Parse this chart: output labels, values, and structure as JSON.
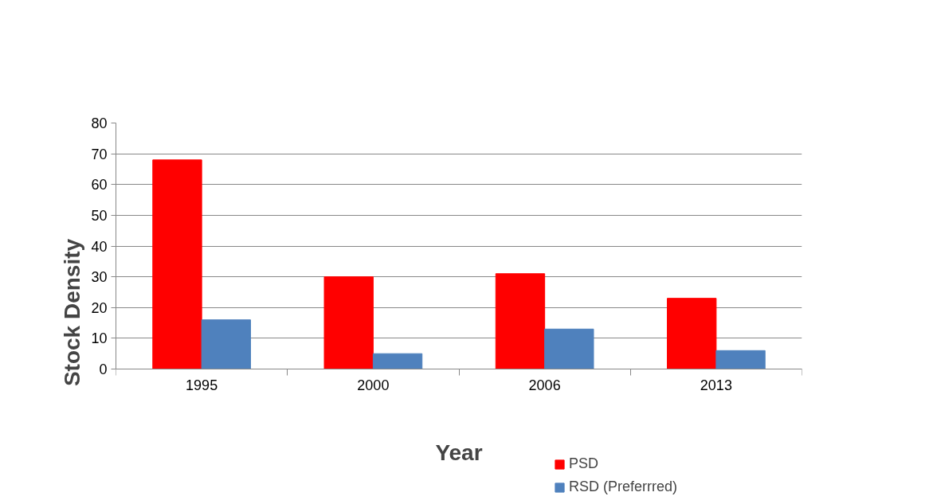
{
  "chart_data": {
    "type": "bar",
    "xlabel": "Year",
    "ylabel": "Stock Density",
    "categories": [
      "1995",
      "2000",
      "2006",
      "2013"
    ],
    "series": [
      {
        "name": "PSD",
        "color": "#ff0000",
        "values": [
          68,
          30,
          31,
          23
        ]
      },
      {
        "name": "RSD (Preferrred)",
        "color": "#4f81bd",
        "values": [
          16,
          5,
          13,
          6
        ]
      }
    ],
    "ylim": [
      0,
      80
    ],
    "yticks": [
      0,
      10,
      20,
      30,
      40,
      50,
      60,
      70,
      80
    ],
    "grid": "y",
    "legend": "bottom"
  }
}
